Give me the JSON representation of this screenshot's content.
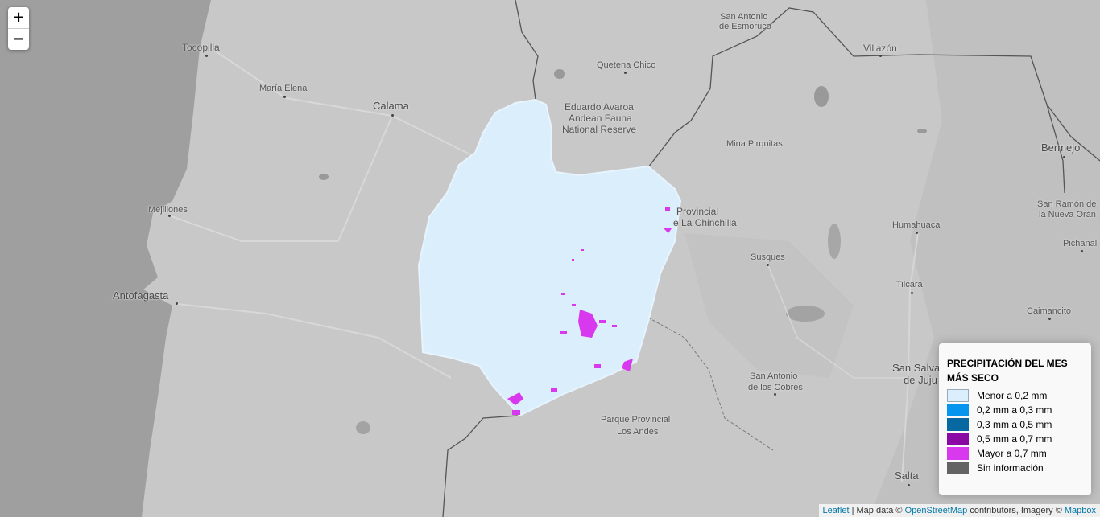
{
  "zoom": {
    "in_label": "+",
    "out_label": "−"
  },
  "places": {
    "tocopilla": "Tocopilla",
    "maria_elena": "María Elena",
    "calama": "Calama",
    "mejillones": "Mejillones",
    "antofagasta": "Antofagasta",
    "san_antonio_esmoruco_1": "San Antonio",
    "san_antonio_esmoruco_2": "de Esmoruco",
    "quetena_chico": "Quetena Chico",
    "avaroa_1": "Eduardo Avaroa",
    "avaroa_2": "Andean Fauna",
    "avaroa_3": "National Reserve",
    "villazon": "Villazón",
    "bermejo": "Bermejo",
    "mina_pirquitas": "Mina Pirquitas",
    "chinchilla_1": "Provincial",
    "chinchilla_2": "e La Chinchilla",
    "san_ramon_1": "San Ramón de",
    "san_ramon_2": "la Nueva Orán",
    "humahuaca": "Humahuaca",
    "pichanal": "Pichanal",
    "susques": "Susques",
    "tilcara": "Tilcara",
    "caimancito": "Caimancito",
    "san_antonio_cobres_1": "San Antonio",
    "san_antonio_cobres_2": "de los Cobres",
    "san_salvador_1": "San Salva",
    "san_salvador_2": "de Juju",
    "los_andes_1": "Parque Provincial",
    "los_andes_2": "Los Andes",
    "salta": "Salta"
  },
  "legend": {
    "title": "PRECIPITACIÓN DEL MES MÁS SECO",
    "items": [
      {
        "label": "Menor a 0,2 mm",
        "color": "#dbeefc"
      },
      {
        "label": "0,2 mm a 0,3 mm",
        "color": "#0595ee"
      },
      {
        "label": "0,3 mm a 0,5 mm",
        "color": "#0868a2"
      },
      {
        "label": "0,5 mm a 0,7 mm",
        "color": "#8a08a3"
      },
      {
        "label": "Mayor a 0,7 mm",
        "color": "#d939ee"
      },
      {
        "label": "Sin información",
        "color": "#636363"
      }
    ]
  },
  "attribution": {
    "leaflet": "Leaflet",
    "sep": " | Map data © ",
    "osm": "OpenStreetMap",
    "mid": " contributors, Imagery © ",
    "mapbox": "Mapbox"
  }
}
